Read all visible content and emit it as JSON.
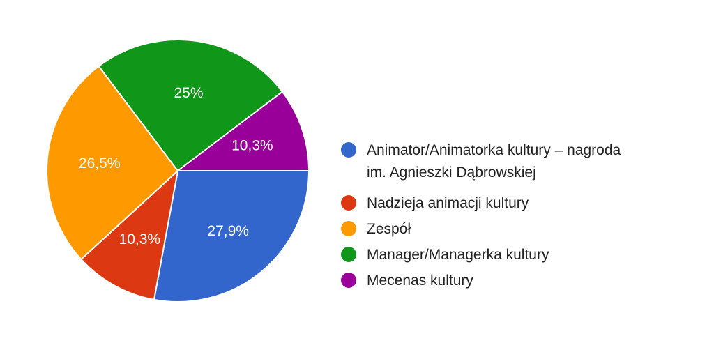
{
  "chart_data": {
    "type": "pie",
    "start_angle_deg": 90,
    "direction": "clockwise",
    "legend_position": "right",
    "slices": [
      {
        "label": "Animator/Animatorka kultury – nagroda im. Agnieszki Dąbrowskiej",
        "legend_lines": [
          "Animator/Animatorka kultury – nagroda",
          "im. Agnieszki Dąbrowskiej"
        ],
        "value": 27.9,
        "display": "27,9%",
        "color": "#3366cc"
      },
      {
        "label": "Nadzieja animacji kultury",
        "legend_lines": [
          "Nadzieja animacji kultury"
        ],
        "value": 10.3,
        "display": "10,3%",
        "color": "#dc3912"
      },
      {
        "label": "Zespół",
        "legend_lines": [
          "Zespół"
        ],
        "value": 26.5,
        "display": "26,5%",
        "color": "#ff9900"
      },
      {
        "label": "Manager/Managerka kultury",
        "legend_lines": [
          "Manager/Managerka kultury"
        ],
        "value": 25,
        "display": "25%",
        "color": "#109618"
      },
      {
        "label": "Mecenas kultury",
        "legend_lines": [
          "Mecenas kultury"
        ],
        "value": 10.3,
        "display": "10,3%",
        "color": "#990099"
      }
    ]
  }
}
